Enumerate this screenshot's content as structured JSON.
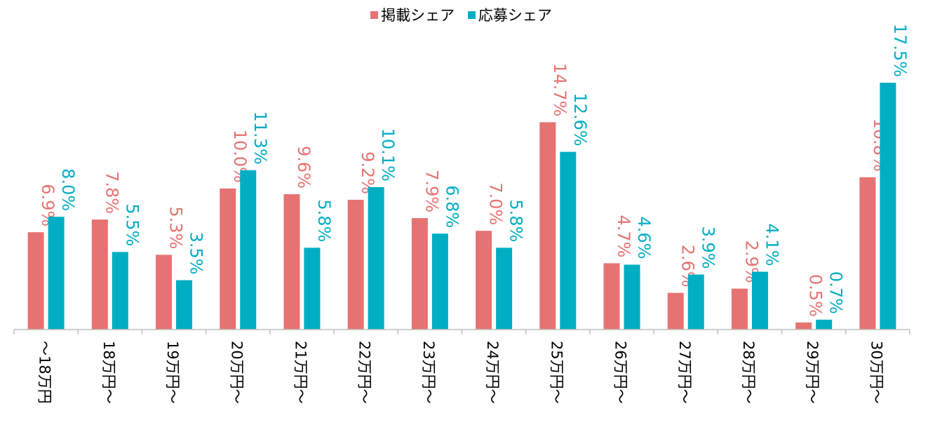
{
  "chart_data": {
    "type": "bar",
    "categories": [
      "～18万円",
      "18万円～",
      "19万円～",
      "20万円～",
      "21万円～",
      "22万円～",
      "23万円～",
      "24万円～",
      "25万円～",
      "26万円～",
      "27万円～",
      "28万円～",
      "29万円～",
      "30万円～"
    ],
    "series": [
      {
        "name": "掲載シェア",
        "color": "#E57373",
        "values": [
          6.9,
          7.8,
          5.3,
          10.0,
          9.6,
          9.2,
          7.9,
          7.0,
          14.7,
          4.7,
          2.6,
          2.9,
          0.5,
          10.8
        ],
        "labels": [
          "6.9%",
          "7.8%",
          "5.3%",
          "10.0%",
          "9.6%",
          "9.2%",
          "7.9%",
          "7.0%",
          "14.7%",
          "4.7%",
          "2.6%",
          "2.9%",
          "0.5%",
          "10.8%"
        ]
      },
      {
        "name": "応募シェア",
        "color": "#00AEC3",
        "values": [
          8.0,
          5.5,
          3.5,
          11.3,
          5.8,
          10.1,
          6.8,
          5.8,
          12.6,
          4.6,
          3.9,
          4.1,
          0.7,
          17.5
        ],
        "labels": [
          "8.0%",
          "5.5%",
          "3.5%",
          "11.3%",
          "5.8%",
          "10.1%",
          "6.8%",
          "5.8%",
          "12.6%",
          "4.6%",
          "3.9%",
          "4.1%",
          "0.7%",
          "17.5%"
        ]
      }
    ],
    "title": "",
    "xlabel": "",
    "ylabel": "",
    "ylim": [
      0,
      17.5
    ],
    "grid": false,
    "legend": "top-center",
    "axis_color": "#BFBFBF"
  }
}
